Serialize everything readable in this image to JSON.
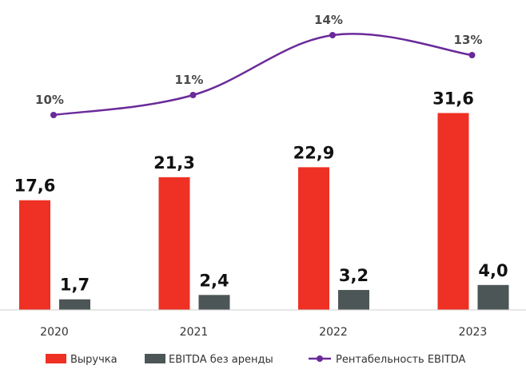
{
  "chart_data": {
    "type": "bar",
    "categories": [
      "2020",
      "2021",
      "2022",
      "2023"
    ],
    "series": [
      {
        "name": "Выручка",
        "values": [
          17.6,
          21.3,
          22.9,
          31.6
        ],
        "labels": [
          "17,6",
          "21,3",
          "22,9",
          "31,6"
        ],
        "color": "#ee3124"
      },
      {
        "name": "EBITDA без аренды",
        "values": [
          1.7,
          2.4,
          3.2,
          4.0
        ],
        "labels": [
          "1,7",
          "2,4",
          "3,2",
          "4,0"
        ],
        "color": "#4d5656"
      }
    ],
    "line_series": {
      "name": "Рентабельность EBITDA",
      "values": [
        10,
        11,
        14,
        13
      ],
      "labels": [
        "10%",
        "11%",
        "14%",
        "13%"
      ],
      "color": "#6a2a9a"
    },
    "title": "",
    "xlabel": "",
    "ylabel": "",
    "ylim": [
      0,
      35
    ],
    "line_ylim": [
      0,
      14
    ],
    "grid": false,
    "legend": "bottom"
  }
}
